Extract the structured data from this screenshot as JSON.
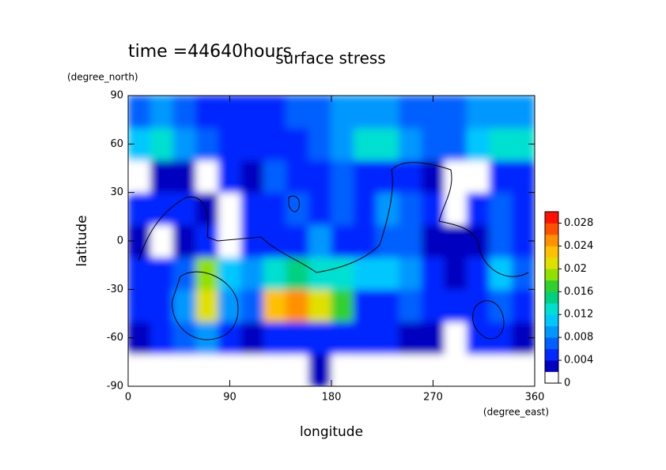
{
  "chart_data": {
    "type": "heatmap",
    "title": "surface stress",
    "annotation": "time =44640hours",
    "xlabel": "longitude",
    "ylabel": "latitude",
    "xunit": "(degree_east)",
    "yunit": "(degree_north)",
    "xlim": [
      0,
      360
    ],
    "xticks": [
      0,
      90,
      180,
      270,
      360
    ],
    "ylim": [
      -90,
      90
    ],
    "yticks": [
      -90,
      -60,
      -30,
      0,
      30,
      60,
      90
    ],
    "x": [
      10,
      30,
      50,
      70,
      90,
      110,
      130,
      150,
      170,
      190,
      210,
      230,
      250,
      270,
      290,
      310,
      330,
      350
    ],
    "y": [
      -80,
      -60,
      -40,
      -20,
      0,
      20,
      40,
      60,
      80
    ],
    "values": [
      [
        0.001,
        0.001,
        0.001,
        0.001,
        0.001,
        0.001,
        0.001,
        0.001,
        0.003,
        0.001,
        0.001,
        0.001,
        0.001,
        0.001,
        0.001,
        0.001,
        0.001,
        0.001
      ],
      [
        0.003,
        0.004,
        0.006,
        0.008,
        0.005,
        0.003,
        0.004,
        0.005,
        0.004,
        0.005,
        0.005,
        0.004,
        0.003,
        0.002,
        0.001,
        0.004,
        0.004,
        0.002
      ],
      [
        0.005,
        0.004,
        0.008,
        0.02,
        0.008,
        0.006,
        0.022,
        0.024,
        0.02,
        0.016,
        0.004,
        0.005,
        0.006,
        0.004,
        0.004,
        0.005,
        0.006,
        0.004
      ],
      [
        0.004,
        0.005,
        0.007,
        0.018,
        0.01,
        0.008,
        0.012,
        0.014,
        0.012,
        0.012,
        0.01,
        0.01,
        0.009,
        0.004,
        0.003,
        0.005,
        0.01,
        0.007
      ],
      [
        0.003,
        0.001,
        0.003,
        0.004,
        0.001,
        0.004,
        0.005,
        0.005,
        0.008,
        0.005,
        0.005,
        0.007,
        0.006,
        0.003,
        0.002,
        0.002,
        0.006,
        0.005
      ],
      [
        0.004,
        0.004,
        0.005,
        0.003,
        0.001,
        0.004,
        0.004,
        0.006,
        0.005,
        0.006,
        0.004,
        0.008,
        0.006,
        0.004,
        0.001,
        0.004,
        0.007,
        0.005
      ],
      [
        0.001,
        0.003,
        0.003,
        0.001,
        0.005,
        0.003,
        0.006,
        0.005,
        0.004,
        0.006,
        0.005,
        0.005,
        0.004,
        0.003,
        0.001,
        0.001,
        0.004,
        0.005
      ],
      [
        0.01,
        0.012,
        0.008,
        0.006,
        0.005,
        0.004,
        0.005,
        0.004,
        0.006,
        0.008,
        0.012,
        0.013,
        0.009,
        0.007,
        0.007,
        0.01,
        0.012,
        0.013
      ],
      [
        0.006,
        0.008,
        0.007,
        0.005,
        0.004,
        0.005,
        0.005,
        0.006,
        0.007,
        0.008,
        0.008,
        0.008,
        0.007,
        0.006,
        0.006,
        0.008,
        0.009,
        0.009
      ]
    ],
    "zlim": [
      0,
      0.03
    ],
    "zticks": [
      0,
      0.004,
      0.008,
      0.012,
      0.016,
      0.02,
      0.024,
      0.028
    ],
    "colorscale": [
      "#ffffff",
      "#0000c0",
      "#0028ff",
      "#0060ff",
      "#0098ff",
      "#00c8ff",
      "#00e0d0",
      "#00d080",
      "#30d030",
      "#90e000",
      "#e0e000",
      "#ffc000",
      "#ff9000",
      "#ff5000",
      "#ff1000"
    ]
  }
}
